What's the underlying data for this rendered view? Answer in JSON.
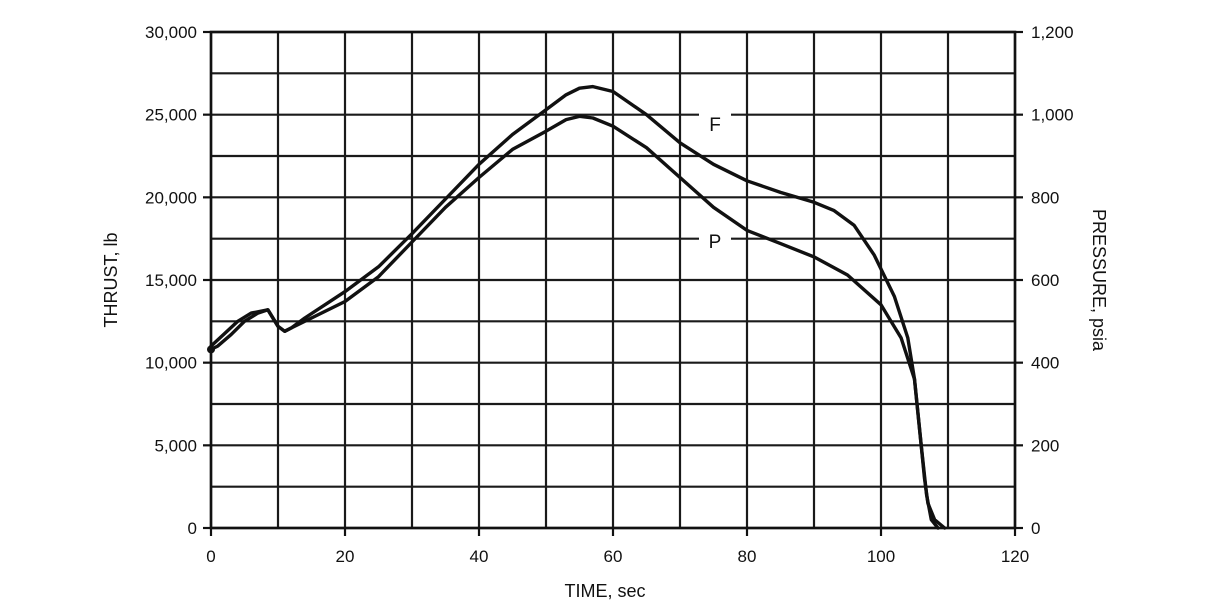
{
  "chart_data": {
    "type": "line",
    "xlabel": "TIME, sec",
    "ylabel": "THRUST, lb",
    "y2label": "PRESSURE, psia",
    "xlim": [
      0,
      120
    ],
    "ylim": [
      0,
      30000
    ],
    "y2lim": [
      0,
      1200
    ],
    "xticks": [
      "0",
      "20",
      "40",
      "60",
      "80",
      "100",
      "120"
    ],
    "yticks": [
      "0",
      "5,000",
      "10,000",
      "15,000",
      "20,000",
      "25,000",
      "30,000"
    ],
    "y2ticks": [
      "0",
      "200",
      "400",
      "600",
      "800",
      "1,000",
      "1,200"
    ],
    "grid": true,
    "series": [
      {
        "name": "F",
        "axis": "left",
        "color": "#111111",
        "points": [
          [
            0,
            10800
          ],
          [
            1,
            11000
          ],
          [
            3,
            11700
          ],
          [
            5,
            12500
          ],
          [
            7,
            13000
          ],
          [
            8.5,
            13200
          ],
          [
            10,
            12200
          ],
          [
            11,
            11900
          ],
          [
            12,
            12100
          ],
          [
            14,
            12700
          ],
          [
            17,
            13500
          ],
          [
            20,
            14300
          ],
          [
            25,
            15800
          ],
          [
            30,
            17800
          ],
          [
            35,
            19900
          ],
          [
            40,
            22000
          ],
          [
            45,
            23800
          ],
          [
            50,
            25300
          ],
          [
            53,
            26200
          ],
          [
            55,
            26600
          ],
          [
            57,
            26700
          ],
          [
            60,
            26400
          ],
          [
            65,
            25000
          ],
          [
            70,
            23300
          ],
          [
            75,
            22000
          ],
          [
            80,
            21000
          ],
          [
            85,
            20300
          ],
          [
            90,
            19700
          ],
          [
            93,
            19200
          ],
          [
            96,
            18300
          ],
          [
            99,
            16500
          ],
          [
            102,
            14000
          ],
          [
            104,
            11500
          ],
          [
            105,
            9000
          ],
          [
            106,
            5000
          ],
          [
            106.5,
            3000
          ],
          [
            107,
            1500
          ],
          [
            108,
            500
          ],
          [
            109.5,
            0
          ]
        ]
      },
      {
        "name": "P",
        "axis": "right",
        "color": "#111111",
        "points": [
          [
            0,
            440
          ],
          [
            2,
            470
          ],
          [
            4,
            500
          ],
          [
            6,
            520
          ],
          [
            8.5,
            528
          ],
          [
            10,
            488
          ],
          [
            11,
            476
          ],
          [
            12,
            484
          ],
          [
            15,
            508
          ],
          [
            20,
            548
          ],
          [
            25,
            608
          ],
          [
            30,
            692
          ],
          [
            35,
            776
          ],
          [
            40,
            848
          ],
          [
            45,
            916
          ],
          [
            50,
            960
          ],
          [
            53,
            988
          ],
          [
            55,
            996
          ],
          [
            57,
            992
          ],
          [
            60,
            972
          ],
          [
            65,
            920
          ],
          [
            70,
            848
          ],
          [
            75,
            776
          ],
          [
            80,
            720
          ],
          [
            85,
            688
          ],
          [
            90,
            656
          ],
          [
            95,
            612
          ],
          [
            100,
            540
          ],
          [
            103,
            460
          ],
          [
            105,
            360
          ],
          [
            106,
            200
          ],
          [
            106.8,
            80
          ],
          [
            107.5,
            20
          ],
          [
            108.5,
            0
          ]
        ]
      }
    ]
  }
}
